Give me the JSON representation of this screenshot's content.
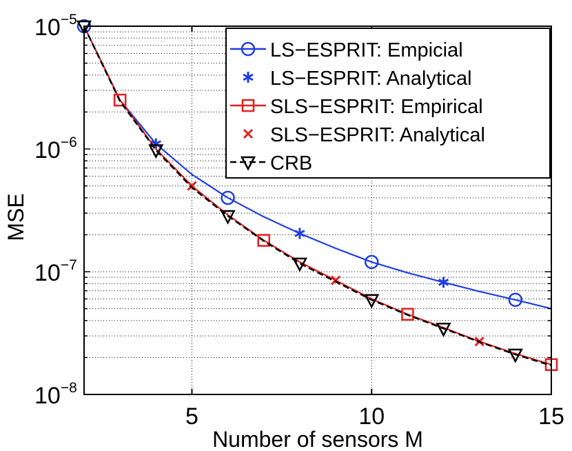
{
  "chart_data": {
    "type": "line",
    "xlabel": "Number of sensors M",
    "ylabel": "MSE",
    "xlim": [
      2,
      15
    ],
    "ylim": [
      1e-08,
      1e-05
    ],
    "yscale": "log",
    "grid": true,
    "legend_position": "top-right",
    "x_ticks": [
      {
        "value": 5,
        "label": "5"
      },
      {
        "value": 10,
        "label": "10"
      },
      {
        "value": 15,
        "label": "15"
      }
    ],
    "y_ticks": [
      {
        "value": 1e-05,
        "base": "10",
        "exp": "−5"
      },
      {
        "value": 1e-06,
        "base": "10",
        "exp": "−6"
      },
      {
        "value": 1e-07,
        "base": "10",
        "exp": "−7"
      },
      {
        "value": 1e-08,
        "base": "10",
        "exp": "−8"
      }
    ],
    "series": [
      {
        "name": "LS−ESPRIT: Empicial",
        "color": "#1f3de6",
        "line": "solid",
        "marker": "circle",
        "x": [
          2,
          3,
          4,
          5,
          6,
          7,
          8,
          9,
          10,
          11,
          12,
          13,
          14,
          15
        ],
        "y": [
          1e-05,
          2.5e-06,
          1.1e-06,
          6.2e-07,
          4e-07,
          2.8e-07,
          2.05e-07,
          1.55e-07,
          1.2e-07,
          9.8e-08,
          8.2e-08,
          6.9e-08,
          5.9e-08,
          5e-08
        ],
        "marker_x": [
          2,
          6,
          10,
          14
        ]
      },
      {
        "name": "LS−ESPRIT: Analytical",
        "color": "#1f3de6",
        "line": "none",
        "marker": "asterisk",
        "x": [
          4,
          8,
          12
        ],
        "y": [
          1.1e-06,
          2.05e-07,
          8.2e-08
        ]
      },
      {
        "name": "SLS−ESPRIT: Empirical",
        "color": "#e61e1e",
        "line": "solid",
        "marker": "square",
        "x": [
          2,
          3,
          4,
          5,
          6,
          7,
          8,
          9,
          10,
          11,
          12,
          13,
          14,
          15
        ],
        "y": [
          1e-05,
          2.5e-06,
          1e-06,
          5e-07,
          2.9e-07,
          1.8e-07,
          1.2e-07,
          8.5e-08,
          6e-08,
          4.5e-08,
          3.5e-08,
          2.7e-08,
          2.15e-08,
          1.75e-08
        ],
        "marker_x": [
          3,
          7,
          11,
          15
        ]
      },
      {
        "name": "SLS−ESPRIT: Analytical",
        "color": "#e61e1e",
        "line": "none",
        "marker": "cross",
        "x": [
          5,
          9,
          13
        ],
        "y": [
          5e-07,
          8.5e-08,
          2.7e-08
        ]
      },
      {
        "name": "CRB",
        "color": "#000000",
        "line": "dashed",
        "marker": "triangle-down",
        "x": [
          2,
          3,
          4,
          5,
          6,
          7,
          8,
          9,
          10,
          11,
          12,
          13,
          14,
          15
        ],
        "y": [
          1e-05,
          2.45e-06,
          9.8e-07,
          4.85e-07,
          2.85e-07,
          1.78e-07,
          1.17e-07,
          8.3e-08,
          5.9e-08,
          4.45e-08,
          3.45e-08,
          2.68e-08,
          2.12e-08,
          1.72e-08
        ],
        "marker_x": [
          2,
          4,
          6,
          8,
          10,
          12,
          14
        ]
      }
    ]
  }
}
